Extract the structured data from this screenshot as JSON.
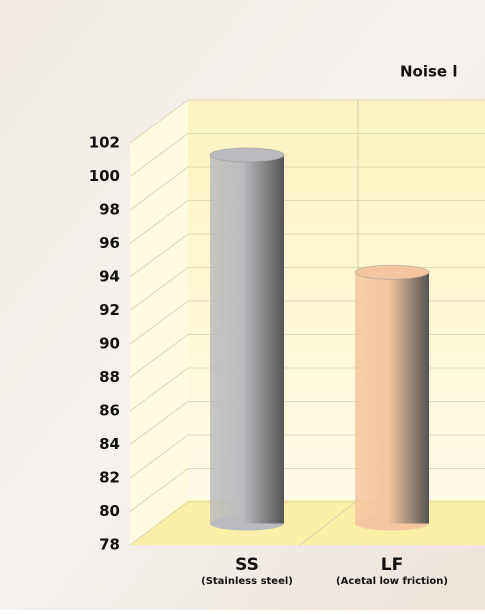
{
  "chart_data": {
    "type": "bar",
    "title": "Noise l",
    "categories": [
      "SS",
      "LF"
    ],
    "category_notes": [
      "(Stainless steel)",
      "(Acetal low friction)"
    ],
    "values": [
      100,
      93
    ],
    "colors": [
      "#b9bbbe",
      "#f4c6a0"
    ],
    "ylim": [
      78,
      102
    ],
    "yticks": [
      78,
      80,
      82,
      84,
      86,
      88,
      90,
      92,
      94,
      96,
      98,
      100,
      102
    ],
    "grid": true
  }
}
